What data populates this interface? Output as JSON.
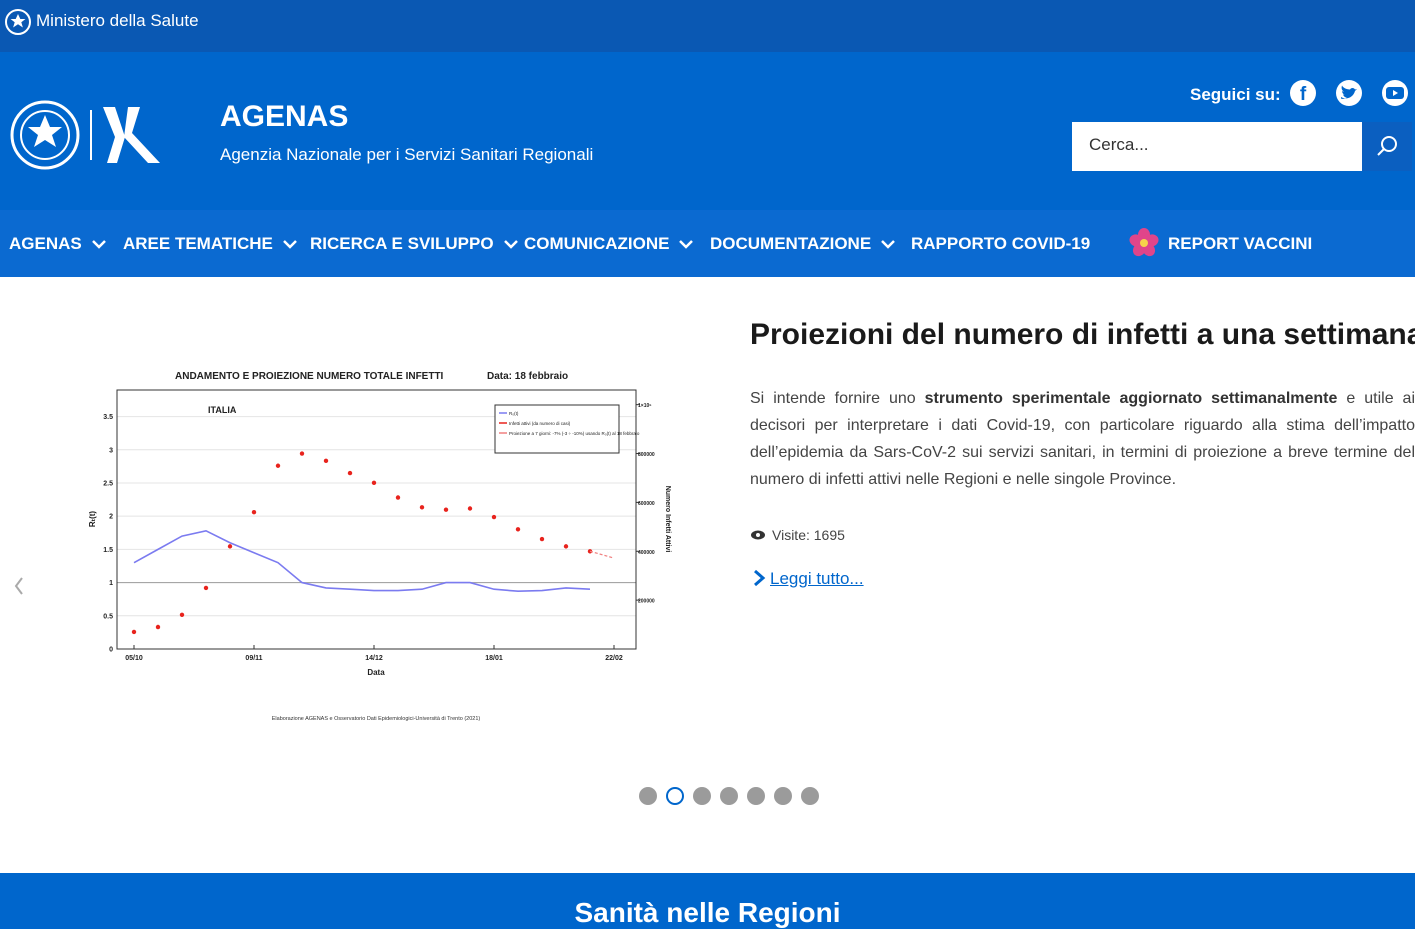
{
  "header": {
    "ministry": "Ministero della Salute",
    "title": "AGENAS",
    "subtitle": "Agenzia Nazionale per i Servizi Sanitari Regionali",
    "follow": "Seguici su:",
    "search_placeholder": "Cerca..."
  },
  "nav": [
    "AGENAS",
    "AREE TEMATICHE",
    "RICERCA E SVILUPPO",
    "COMUNICAZIONE",
    "DOCUMENTAZIONE",
    "RAPPORTO COVID-19",
    "REPORT VACCINI"
  ],
  "chart_data": {
    "type": "line",
    "title": "ANDAMENTO E PROIEZIONE NUMERO TOTALE INFETTI",
    "subtitle": "Data: 18 febbraio",
    "annotation": "ITALIA",
    "x_label": "Data",
    "y_label": "Rₜ(t)",
    "y2_label": "Numero Infetti Attivi",
    "source": "Elaborazione AGENAS e Osservatorio Dati Epidemiologici-Università di Trento (2021)",
    "categories": [
      "05/10",
      null,
      null,
      null,
      null,
      "09/11",
      null,
      null,
      null,
      null,
      "14/12",
      null,
      null,
      null,
      null,
      "18/01",
      null,
      null,
      null,
      null,
      "22/02"
    ],
    "series": [
      {
        "name": "R₀(t)",
        "color": "#7b7bf0",
        "values": [
          1.3,
          1.5,
          1.7,
          1.78,
          1.6,
          1.45,
          1.3,
          1.0,
          0.92,
          0.9,
          0.88,
          0.88,
          0.9,
          1.0,
          1.0,
          0.9,
          0.87,
          0.88,
          0.92,
          0.9,
          null
        ]
      },
      {
        "name": "Infetti attivi (da numero di casi)",
        "color": "#e8231d",
        "axis": "y2",
        "values": [
          70000,
          90000,
          140000,
          250000,
          420000,
          560000,
          750000,
          800000,
          770000,
          720000,
          680000,
          620000,
          580000,
          570000,
          575000,
          540000,
          490000,
          450000,
          420000,
          400000,
          null
        ]
      },
      {
        "name": "Proiezione a 7 giorni: -7% (-3 ÷ -10%) usando R₀(t) al 18 febbraio",
        "color": "#f08080",
        "axis": "y2",
        "values": [
          null,
          null,
          null,
          null,
          null,
          null,
          null,
          null,
          null,
          null,
          null,
          null,
          null,
          null,
          null,
          null,
          null,
          null,
          null,
          400000,
          372000
        ]
      }
    ],
    "ylim": [
      0,
      3.9
    ],
    "yticks": [
      0,
      0.5,
      1,
      1.5,
      2,
      2.5,
      3,
      3.5
    ],
    "y2lim": [
      0,
      1060000
    ],
    "y2ticks": [
      200000,
      400000,
      600000,
      800000,
      {
        "value": 1000000,
        "label": "1×10⁶"
      }
    ],
    "grid": true
  },
  "slide": {
    "title": "Proiezioni del numero di infetti a una settimana",
    "text_before": "Si intende fornire uno ",
    "text_bold": "strumento sperimentale aggiornato settimanalmente",
    "text_after": " e utile ai decisori per interpretare i dati Covid-19, con particolare riguardo alla stima dell’impatto dell’epidemia da Sars-CoV-2 sui servizi sanitari, in termini di proiezione a breve termine del numero di infetti attivi nelle Regioni e nelle singole Province.",
    "visits": "Visite: 1695",
    "read_more": "Leggi tutto..."
  },
  "section": {
    "title": "Sanità nelle Regioni"
  }
}
